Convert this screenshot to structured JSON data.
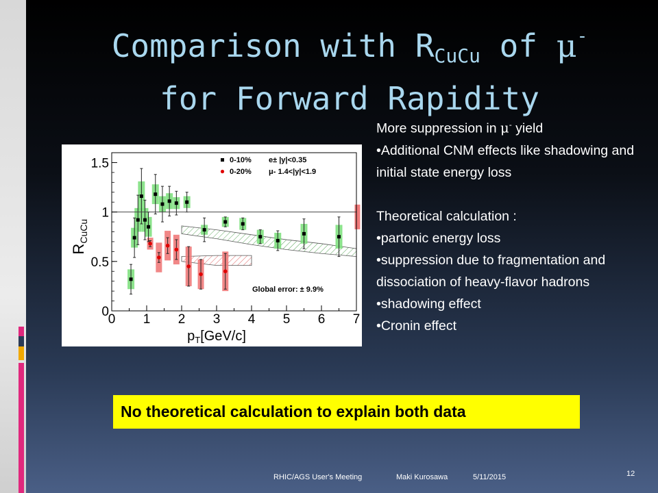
{
  "slide": {
    "title_line1_pre": "Comparison with R",
    "title_sub": "CuCu",
    "title_line1_mid": " of ",
    "title_mu": "μ",
    "title_sup": "-",
    "title_line2": "for Forward Rapidity",
    "bullets": {
      "heading_pre": "More suppression in ",
      "heading_mu": "μ",
      "heading_sup": "-",
      "heading_post": " yield",
      "item1": "•Additional CNM effects like shadowing and initial state energy loss",
      "theory_heading": "Theoretical calculation :",
      "item2": "•partonic energy loss",
      "item3": "•suppression due to fragmentation and dissociation of heavy-flavor hadrons",
      "item4": "•shadowing effect",
      "item5": "•Cronin effect"
    },
    "banner": "No theoretical calculation to explain both data",
    "footer": {
      "meeting": "RHIC/AGS User's Meeting",
      "author": "Maki Kurosawa",
      "date": "5/11/2015",
      "page": "12"
    },
    "accent_colors": [
      "#e0287d",
      "#2b3b56",
      "#f0a800"
    ]
  },
  "chart_data": {
    "type": "scatter",
    "ylabel": "RCuCu",
    "xlabel": "pT[GeV/c]",
    "xlim": [
      0,
      7
    ],
    "ylim": [
      0,
      1.6
    ],
    "x_ticks": [
      "0",
      "1",
      "2",
      "3",
      "4",
      "5",
      "6",
      "7"
    ],
    "y_ticks": [
      "0",
      "0.5",
      "1",
      "1.5"
    ],
    "reference_line": 1,
    "annotation": "Global error: ± 9.9%",
    "legend": [
      {
        "label": "0-10%",
        "desc": "e± |y|<0.35",
        "color": "#000000",
        "box": "#7fe07f"
      },
      {
        "label": "0-20%",
        "desc": "μ- 1.4<|y|<1.9",
        "color": "#e00000",
        "box": "#f07a7a"
      }
    ],
    "series": [
      {
        "name": "0-10%",
        "x": [
          0.55,
          0.65,
          0.75,
          0.85,
          0.95,
          1.05,
          1.25,
          1.45,
          1.65,
          1.85,
          2.15,
          2.65,
          3.25,
          3.75,
          4.25,
          4.75,
          5.5,
          6.5
        ],
        "y": [
          0.32,
          0.74,
          0.92,
          1.16,
          0.92,
          0.85,
          1.18,
          1.08,
          1.11,
          1.09,
          1.1,
          0.82,
          0.9,
          0.88,
          0.75,
          0.71,
          0.78,
          0.75
        ],
        "err": [
          0.15,
          0.2,
          0.25,
          0.28,
          0.2,
          0.15,
          0.2,
          0.18,
          0.15,
          0.12,
          0.1,
          0.12,
          0.05,
          0.06,
          0.07,
          0.1,
          0.15,
          0.2
        ],
        "sys": [
          0.1,
          0.1,
          0.12,
          0.15,
          0.12,
          0.1,
          0.1,
          0.08,
          0.08,
          0.06,
          0.06,
          0.05,
          0.05,
          0.06,
          0.07,
          0.08,
          0.1,
          0.12
        ]
      },
      {
        "name": "0-20%",
        "x": [
          1.1,
          1.35,
          1.6,
          1.85,
          2.2,
          2.55,
          3.25
        ],
        "y": [
          0.68,
          0.54,
          0.66,
          0.62,
          0.45,
          0.37,
          0.4
        ],
        "err": [
          0.03,
          0.05,
          0.08,
          0.1,
          0.2,
          0.15,
          0.18
        ],
        "sys": [
          0.06,
          0.15,
          0.15,
          0.15,
          0.2,
          0.15,
          0.2
        ]
      }
    ],
    "theory_bands": [
      {
        "x": [
          2.0,
          3.0,
          4.0,
          5.0,
          6.0,
          7.0
        ],
        "low": [
          0.78,
          0.73,
          0.67,
          0.62,
          0.58,
          0.55
        ],
        "high": [
          0.86,
          0.82,
          0.77,
          0.72,
          0.68,
          0.63
        ]
      },
      {
        "x": [
          2.0,
          3.0,
          4.0
        ],
        "low": [
          0.5,
          0.46,
          0.46
        ],
        "high": [
          0.55,
          0.56,
          0.56
        ]
      }
    ],
    "edge_box": {
      "x": 6.95,
      "y": 0.95,
      "h": 0.25
    }
  }
}
